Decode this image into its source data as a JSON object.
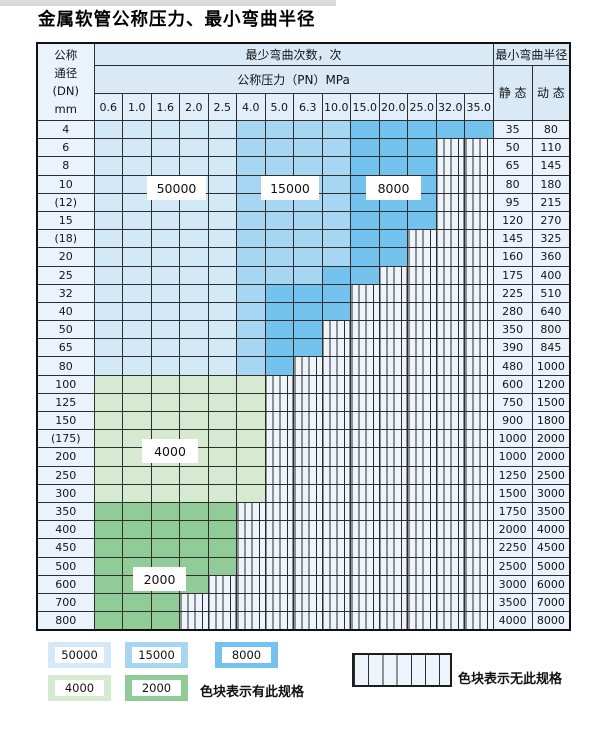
{
  "title": "金属软管公称压力、最小弯曲半径",
  "colors": {
    "blue_light": "#d4e9f8",
    "blue_medium": "#a6d6f2",
    "blue_dark": "#74c3ee",
    "green_light": "#d6e9d1",
    "green_dark": "#91cc98",
    "label_bg": "#eaf2fb",
    "header_bg": "#d9e9f6",
    "header_num_bg": "#e2eef9",
    "hatch_bg": "#eef4fb",
    "grid": "#2e2e2e"
  },
  "table": {
    "header": {
      "dn_label_lines": [
        "公称",
        "通径",
        "(DN)",
        "mm"
      ],
      "bend_cycles": "最少弯曲次数，次",
      "pressure": "公称压力（PN）MPa",
      "radius": "最小弯曲半径",
      "static": "静 态",
      "dynamic": "动 态",
      "pressure_cols": [
        "0.6",
        "1.0",
        "1.6",
        "2.0",
        "2.5",
        "4.0",
        "5.0",
        "6.3",
        "10.0",
        "15.0",
        "20.0",
        "25.0",
        "32.0",
        "35.0"
      ]
    },
    "cell_legend": {
      "b1": "50000 cycles",
      "b2": "15000 cycles",
      "b3": "8000 cycles",
      "g1": "4000 cycles",
      "g2": "2000 cycles",
      "x": "no spec"
    },
    "rows": [
      {
        "dn": "4",
        "static": "35",
        "dynamic": "80",
        "cells": [
          "b1",
          "b1",
          "b1",
          "b1",
          "b1",
          "b2",
          "b2",
          "b2",
          "b2",
          "b3",
          "b3",
          "b3",
          "b3",
          "b3"
        ]
      },
      {
        "dn": "6",
        "static": "50",
        "dynamic": "110",
        "cells": [
          "b1",
          "b1",
          "b1",
          "b1",
          "b1",
          "b2",
          "b2",
          "b2",
          "b2",
          "b3",
          "b3",
          "b3",
          "x",
          "x"
        ]
      },
      {
        "dn": "8",
        "static": "65",
        "dynamic": "145",
        "cells": [
          "b1",
          "b1",
          "b1",
          "b1",
          "b1",
          "b2",
          "b2",
          "b2",
          "b2",
          "b3",
          "b3",
          "b3",
          "x",
          "x"
        ]
      },
      {
        "dn": "10",
        "static": "80",
        "dynamic": "180",
        "cells": [
          "b1",
          "b1",
          "b1",
          "b1",
          "b1",
          "b2",
          "b2",
          "b2",
          "b2",
          "b3",
          "b3",
          "b3",
          "x",
          "x"
        ]
      },
      {
        "dn": "(12)",
        "static": "95",
        "dynamic": "215",
        "cells": [
          "b1",
          "b1",
          "b1",
          "b1",
          "b1",
          "b2",
          "b2",
          "b2",
          "b2",
          "b3",
          "b3",
          "b3",
          "x",
          "x"
        ]
      },
      {
        "dn": "15",
        "static": "120",
        "dynamic": "270",
        "cells": [
          "b1",
          "b1",
          "b1",
          "b1",
          "b1",
          "b2",
          "b2",
          "b2",
          "b2",
          "b3",
          "b3",
          "b3",
          "x",
          "x"
        ]
      },
      {
        "dn": "(18)",
        "static": "145",
        "dynamic": "325",
        "cells": [
          "b1",
          "b1",
          "b1",
          "b1",
          "b1",
          "b2",
          "b2",
          "b2",
          "b2",
          "b3",
          "b3",
          "x",
          "x",
          "x"
        ]
      },
      {
        "dn": "20",
        "static": "160",
        "dynamic": "360",
        "cells": [
          "b1",
          "b1",
          "b1",
          "b1",
          "b1",
          "b2",
          "b2",
          "b2",
          "b2",
          "b3",
          "b3",
          "x",
          "x",
          "x"
        ]
      },
      {
        "dn": "25",
        "static": "175",
        "dynamic": "400",
        "cells": [
          "b1",
          "b1",
          "b1",
          "b1",
          "b1",
          "b2",
          "b2",
          "b2",
          "b3",
          "b3",
          "x",
          "x",
          "x",
          "x"
        ]
      },
      {
        "dn": "32",
        "static": "225",
        "dynamic": "510",
        "cells": [
          "b1",
          "b1",
          "b1",
          "b1",
          "b1",
          "b2",
          "b3",
          "b3",
          "b3",
          "x",
          "x",
          "x",
          "x",
          "x"
        ]
      },
      {
        "dn": "40",
        "static": "280",
        "dynamic": "640",
        "cells": [
          "b1",
          "b1",
          "b1",
          "b1",
          "b1",
          "b2",
          "b3",
          "b3",
          "b3",
          "x",
          "x",
          "x",
          "x",
          "x"
        ]
      },
      {
        "dn": "50",
        "static": "350",
        "dynamic": "800",
        "cells": [
          "b1",
          "b1",
          "b1",
          "b1",
          "b1",
          "b2",
          "b3",
          "b3",
          "x",
          "x",
          "x",
          "x",
          "x",
          "x"
        ]
      },
      {
        "dn": "65",
        "static": "390",
        "dynamic": "845",
        "cells": [
          "b1",
          "b1",
          "b1",
          "b1",
          "b1",
          "b2",
          "b3",
          "b3",
          "x",
          "x",
          "x",
          "x",
          "x",
          "x"
        ]
      },
      {
        "dn": "80",
        "static": "480",
        "dynamic": "1000",
        "cells": [
          "b1",
          "b1",
          "b1",
          "b1",
          "b1",
          "b2",
          "b3",
          "x",
          "x",
          "x",
          "x",
          "x",
          "x",
          "x"
        ]
      },
      {
        "dn": "100",
        "static": "600",
        "dynamic": "1200",
        "cells": [
          "g1",
          "g1",
          "g1",
          "g1",
          "g1",
          "g1",
          "x",
          "x",
          "x",
          "x",
          "x",
          "x",
          "x",
          "x"
        ]
      },
      {
        "dn": "125",
        "static": "750",
        "dynamic": "1500",
        "cells": [
          "g1",
          "g1",
          "g1",
          "g1",
          "g1",
          "g1",
          "x",
          "x",
          "x",
          "x",
          "x",
          "x",
          "x",
          "x"
        ]
      },
      {
        "dn": "150",
        "static": "900",
        "dynamic": "1800",
        "cells": [
          "g1",
          "g1",
          "g1",
          "g1",
          "g1",
          "g1",
          "x",
          "x",
          "x",
          "x",
          "x",
          "x",
          "x",
          "x"
        ]
      },
      {
        "dn": "(175)",
        "static": "1000",
        "dynamic": "2000",
        "cells": [
          "g1",
          "g1",
          "g1",
          "g1",
          "g1",
          "g1",
          "x",
          "x",
          "x",
          "x",
          "x",
          "x",
          "x",
          "x"
        ]
      },
      {
        "dn": "200",
        "static": "1000",
        "dynamic": "2000",
        "cells": [
          "g1",
          "g1",
          "g1",
          "g1",
          "g1",
          "g1",
          "x",
          "x",
          "x",
          "x",
          "x",
          "x",
          "x",
          "x"
        ]
      },
      {
        "dn": "250",
        "static": "1250",
        "dynamic": "2500",
        "cells": [
          "g1",
          "g1",
          "g1",
          "g1",
          "g1",
          "g1",
          "x",
          "x",
          "x",
          "x",
          "x",
          "x",
          "x",
          "x"
        ]
      },
      {
        "dn": "300",
        "static": "1500",
        "dynamic": "3000",
        "cells": [
          "g1",
          "g1",
          "g1",
          "g1",
          "g1",
          "g1",
          "x",
          "x",
          "x",
          "x",
          "x",
          "x",
          "x",
          "x"
        ]
      },
      {
        "dn": "350",
        "static": "1750",
        "dynamic": "3500",
        "cells": [
          "g2",
          "g2",
          "g2",
          "g2",
          "g2",
          "x",
          "x",
          "x",
          "x",
          "x",
          "x",
          "x",
          "x",
          "x"
        ]
      },
      {
        "dn": "400",
        "static": "2000",
        "dynamic": "4000",
        "cells": [
          "g2",
          "g2",
          "g2",
          "g2",
          "g2",
          "x",
          "x",
          "x",
          "x",
          "x",
          "x",
          "x",
          "x",
          "x"
        ]
      },
      {
        "dn": "450",
        "static": "2250",
        "dynamic": "4500",
        "cells": [
          "g2",
          "g2",
          "g2",
          "g2",
          "g2",
          "x",
          "x",
          "x",
          "x",
          "x",
          "x",
          "x",
          "x",
          "x"
        ]
      },
      {
        "dn": "500",
        "static": "2500",
        "dynamic": "5000",
        "cells": [
          "g2",
          "g2",
          "g2",
          "g2",
          "g2",
          "x",
          "x",
          "x",
          "x",
          "x",
          "x",
          "x",
          "x",
          "x"
        ]
      },
      {
        "dn": "600",
        "static": "3000",
        "dynamic": "6000",
        "cells": [
          "g2",
          "g2",
          "g2",
          "g2",
          "x",
          "x",
          "x",
          "x",
          "x",
          "x",
          "x",
          "x",
          "x",
          "x"
        ]
      },
      {
        "dn": "700",
        "static": "3500",
        "dynamic": "7000",
        "cells": [
          "g2",
          "g2",
          "g2",
          "x",
          "x",
          "x",
          "x",
          "x",
          "x",
          "x",
          "x",
          "x",
          "x",
          "x"
        ]
      },
      {
        "dn": "800",
        "static": "4000",
        "dynamic": "8000",
        "cells": [
          "g2",
          "g2",
          "g2",
          "x",
          "x",
          "x",
          "x",
          "x",
          "x",
          "x",
          "x",
          "x",
          "x",
          "x"
        ]
      }
    ]
  },
  "region_labels": [
    {
      "text": "50000"
    },
    {
      "text": "15000"
    },
    {
      "text": "8000"
    },
    {
      "text": "4000"
    },
    {
      "text": "2000"
    }
  ],
  "legend": {
    "items": [
      {
        "label": "50000"
      },
      {
        "label": "15000"
      },
      {
        "label": "8000"
      },
      {
        "label": "4000"
      },
      {
        "label": "2000"
      }
    ],
    "has_spec_note": "色块表示有此规格",
    "no_spec_note": "色块表示无此规格"
  }
}
